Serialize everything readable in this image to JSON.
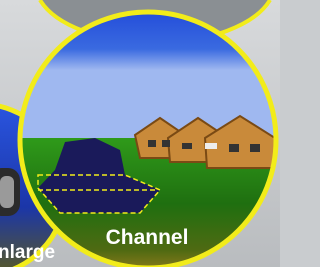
{
  "labels": {
    "main": "Channel",
    "side": "nlarge"
  }
}
